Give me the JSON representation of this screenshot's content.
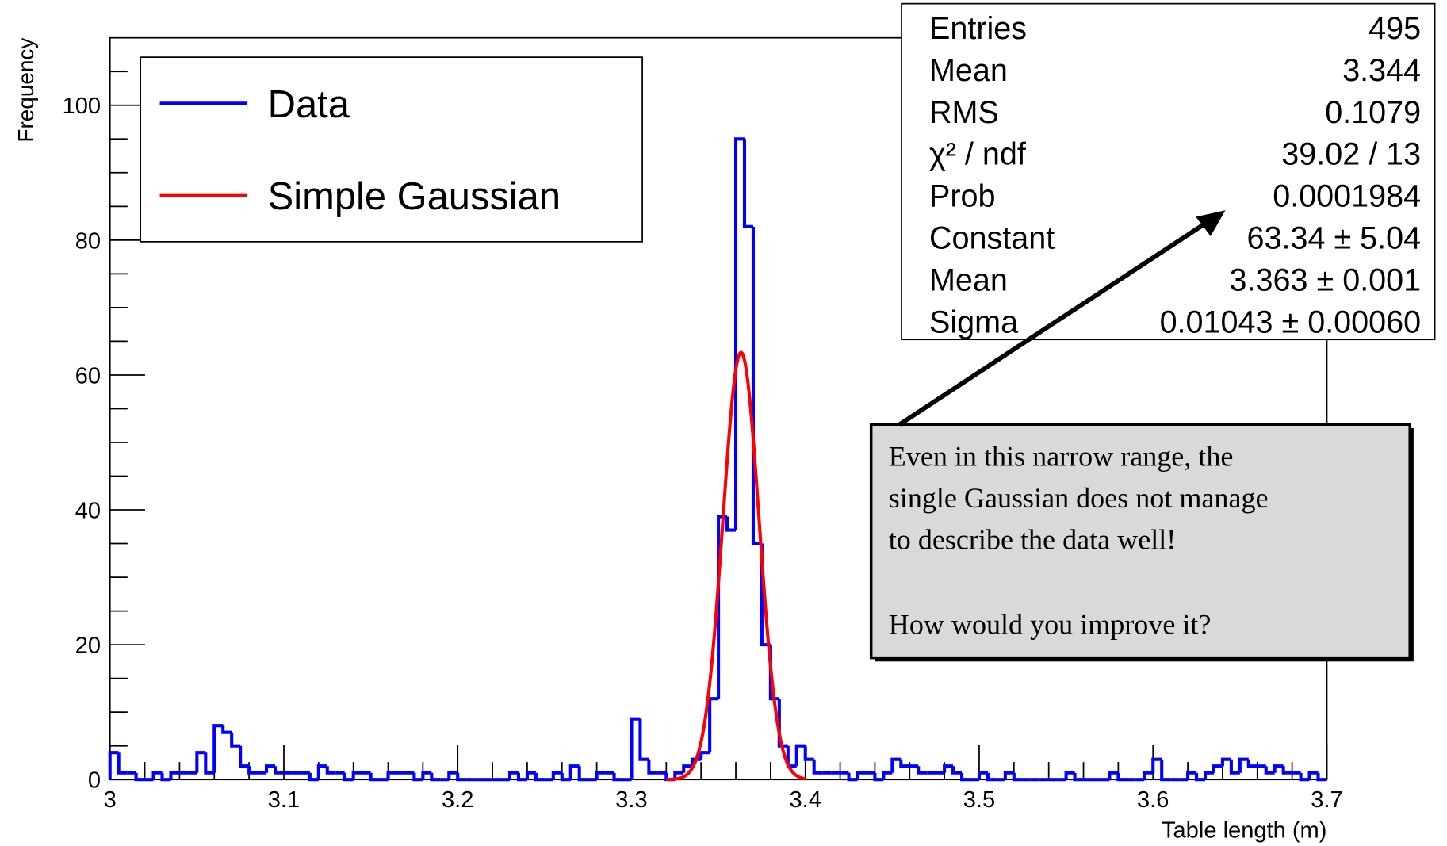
{
  "chart_data": {
    "type": "histogram",
    "name": "Data",
    "color": "#0000ff",
    "xlabel": "Table length (m)",
    "ylabel": "Frequency",
    "bins": [
      3,
      3.005,
      3.01,
      3.015,
      3.02,
      3.025,
      3.03,
      3.035,
      3.04,
      3.045,
      3.05,
      3.055,
      3.06,
      3.065,
      3.07,
      3.075,
      3.08,
      3.085,
      3.09,
      3.095,
      3.1,
      3.105,
      3.11,
      3.115,
      3.12,
      3.125,
      3.13,
      3.135,
      3.14,
      3.145,
      3.15,
      3.155,
      3.16,
      3.165,
      3.17,
      3.175,
      3.18,
      3.185,
      3.19,
      3.195,
      3.2,
      3.205,
      3.21,
      3.215,
      3.22,
      3.225,
      3.23,
      3.235,
      3.24,
      3.245,
      3.25,
      3.255,
      3.26,
      3.265,
      3.27,
      3.275,
      3.28,
      3.285,
      3.29,
      3.295,
      3.3,
      3.305,
      3.31,
      3.315,
      3.32,
      3.325,
      3.33,
      3.335,
      3.34,
      3.345,
      3.35,
      3.355,
      3.36,
      3.365,
      3.37,
      3.375,
      3.38,
      3.385,
      3.39,
      3.395,
      3.4,
      3.405,
      3.41,
      3.415,
      3.42,
      3.425,
      3.43,
      3.435,
      3.44,
      3.445,
      3.45,
      3.455,
      3.46,
      3.465,
      3.47,
      3.475,
      3.48,
      3.485,
      3.49,
      3.495,
      3.5,
      3.505,
      3.51,
      3.515,
      3.52,
      3.525,
      3.53,
      3.535,
      3.54,
      3.545,
      3.55,
      3.555,
      3.56,
      3.565,
      3.57,
      3.575,
      3.58,
      3.585,
      3.59,
      3.595,
      3.6,
      3.605,
      3.61,
      3.615,
      3.62,
      3.625,
      3.63,
      3.635,
      3.64,
      3.645,
      3.65,
      3.655,
      3.66,
      3.665,
      3.67,
      3.675,
      3.68,
      3.685,
      3.69,
      3.695,
      3.7
    ],
    "values": [
      4,
      1,
      1,
      0,
      0,
      1,
      0,
      1,
      1,
      1,
      4,
      1,
      8,
      7,
      5,
      2,
      1,
      1,
      2,
      1,
      1,
      1,
      1,
      0,
      2,
      1,
      1,
      0,
      1,
      1,
      0,
      0,
      1,
      1,
      1,
      0,
      1,
      0,
      0,
      1,
      0,
      0,
      0,
      0,
      0,
      0,
      1,
      0,
      1,
      0,
      0,
      1,
      0,
      2,
      0,
      0,
      1,
      1,
      0,
      0,
      9,
      3,
      1,
      1,
      0,
      1,
      2,
      3,
      4,
      12,
      39,
      37,
      95,
      82,
      35,
      20,
      12,
      5,
      2,
      5,
      3,
      1,
      1,
      1,
      1,
      0,
      1,
      1,
      0,
      1,
      3,
      2,
      2,
      1,
      1,
      1,
      2,
      1,
      0,
      0,
      1,
      0,
      0,
      1,
      0,
      0,
      0,
      0,
      0,
      0,
      1,
      0,
      0,
      0,
      0,
      1,
      0,
      0,
      0,
      1,
      3,
      0,
      0,
      0,
      1,
      0,
      1,
      2,
      3,
      1,
      3,
      2,
      2,
      1,
      2,
      1,
      1,
      0,
      1,
      0
    ],
    "fit": {
      "name": "Simple Gaussian",
      "color": "#ff0000",
      "constant": 63.34,
      "mean": 3.363,
      "sigma": 0.01043,
      "xlim": [
        3.32,
        3.4
      ]
    },
    "xlim": [
      3,
      3.7
    ],
    "ylim": [
      0,
      110
    ],
    "xticks": [
      3,
      3.1,
      3.2,
      3.3,
      3.4,
      3.5,
      3.6,
      3.7
    ],
    "yticks": [
      0,
      20,
      40,
      60,
      80,
      100
    ],
    "xminorticks": [
      3.02,
      3.04,
      3.06,
      3.08,
      3.12,
      3.14,
      3.16,
      3.18,
      3.22,
      3.24,
      3.26,
      3.28,
      3.32,
      3.34,
      3.36,
      3.38,
      3.42,
      3.44,
      3.46,
      3.48,
      3.52,
      3.54,
      3.56,
      3.58,
      3.62,
      3.64,
      3.66,
      3.68
    ],
    "yminorticks": [
      5,
      10,
      15,
      25,
      30,
      35,
      45,
      50,
      55,
      65,
      70,
      75,
      85,
      90,
      95,
      105
    ],
    "legend": "upper left",
    "stats": [
      {
        "label": "Entries",
        "value": "495"
      },
      {
        "label": "Mean",
        "value": "3.344"
      },
      {
        "label": "RMS",
        "value": "0.1079"
      },
      {
        "label": "χ² / ndf",
        "value": "39.02 / 13"
      },
      {
        "label": "Prob",
        "value": "0.0001984"
      },
      {
        "label": "Constant",
        "value": "63.34 ± 5.04"
      },
      {
        "label": "Mean",
        "value": "3.363 ± 0.001"
      },
      {
        "label": "Sigma",
        "value": "0.01043 ± 0.00060"
      }
    ],
    "annotation": {
      "paragraphs": [
        [
          "Even in this narrow range, the",
          "single Gaussian does not manage",
          "to describe the data well!"
        ],
        [
          "How would you improve it?"
        ]
      ]
    }
  }
}
